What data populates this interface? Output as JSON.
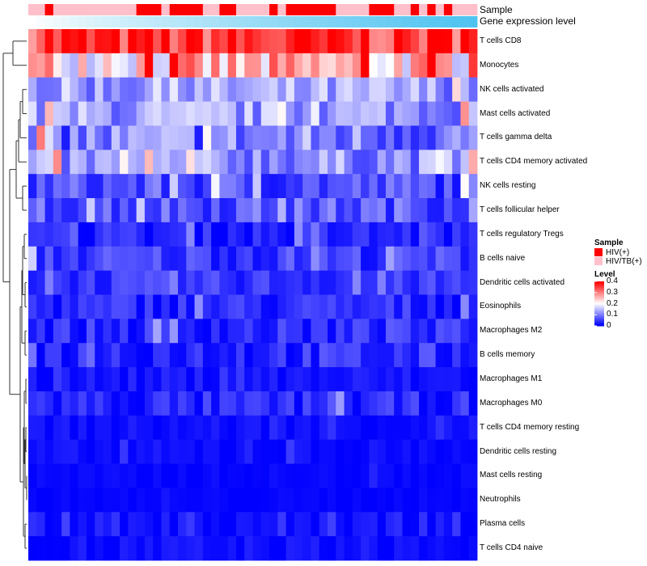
{
  "chart_data": {
    "type": "heatmap",
    "title": "",
    "annotations": [
      {
        "name": "Sample",
        "type": "categorical",
        "colors": {
          "HIV(+)": "#ff0000",
          "HIV/TB(+)": "#ffc0cb"
        },
        "values": [
          "HIV/TB(+)",
          "HIV/TB(+)",
          "HIV(+)",
          "HIV/TB(+)",
          "HIV/TB(+)",
          "HIV/TB(+)",
          "HIV/TB(+)",
          "HIV/TB(+)",
          "HIV/TB(+)",
          "HIV/TB(+)",
          "HIV/TB(+)",
          "HIV/TB(+)",
          "HIV/TB(+)",
          "HIV(+)",
          "HIV(+)",
          "HIV(+)",
          "HIV/TB(+)",
          "HIV(+)",
          "HIV(+)",
          "HIV(+)",
          "HIV(+)",
          "HIV/TB(+)",
          "HIV/TB(+)",
          "HIV(+)",
          "HIV(+)",
          "HIV/TB(+)",
          "HIV/TB(+)",
          "HIV/TB(+)",
          "HIV/TB(+)",
          "HIV(+)",
          "HIV/TB(+)",
          "HIV(+)",
          "HIV(+)",
          "HIV(+)",
          "HIV(+)",
          "HIV(+)",
          "HIV(+)",
          "HIV/TB(+)",
          "HIV/TB(+)",
          "HIV/TB(+)",
          "HIV/TB(+)",
          "HIV(+)",
          "HIV(+)",
          "HIV(+)",
          "HIV/TB(+)",
          "HIV/TB(+)",
          "HIV(+)",
          "HIV/TB(+)",
          "HIV(+)",
          "HIV/TB(+)",
          "HIV(+)",
          "HIV/TB(+)",
          "HIV/TB(+)",
          "HIV/TB(+)"
        ]
      },
      {
        "name": "Gene expression level",
        "type": "continuous",
        "low_color": "#ffffff",
        "high_color": "#4fc3f0"
      }
    ],
    "rows": [
      "T cells CD8",
      "Monocytes",
      "NK cells activated",
      "Mast cells activated",
      "T cells gamma delta",
      "T cells CD4 memory activated",
      "NK cells resting",
      "T cells follicular helper",
      "T cells regulatory  Tregs",
      "B cells naive",
      "Dendritic cells activated",
      "Eosinophils",
      "Macrophages M2",
      "B cells memory",
      "Macrophages M1",
      "Macrophages M0",
      "T cells CD4 memory resting",
      "Dendritic cells resting",
      "Mast cells resting",
      "Neutrophils",
      "Plasma cells",
      "T cells CD4 naive"
    ],
    "n_samples": 54,
    "row_levels": [
      0.34,
      0.22,
      0.11,
      0.11,
      0.08,
      0.1,
      0.05,
      0.06,
      0.02,
      0.04,
      0.035,
      0.025,
      0.025,
      0.025,
      0.01,
      0.02,
      0.008,
      0.005,
      0.003,
      0.002,
      0.01,
      0.005
    ],
    "row_spread": [
      0.08,
      0.1,
      0.06,
      0.06,
      0.08,
      0.06,
      0.05,
      0.05,
      0.03,
      0.04,
      0.03,
      0.035,
      0.035,
      0.04,
      0.02,
      0.035,
      0.015,
      0.015,
      0.008,
      0.006,
      0.03,
      0.02
    ],
    "color_scale": {
      "low": "#0000ff",
      "mid": "#ffffff",
      "high": "#ff0000",
      "min": 0,
      "mid_value": 0.2,
      "max": 0.4
    },
    "legend": {
      "sample_title": "Sample",
      "sample_items": [
        {
          "label": "HIV(+)",
          "color": "#ff0000"
        },
        {
          "label": "HIV/TB(+)",
          "color": "#ffc0cb"
        }
      ],
      "level_title": "Level",
      "level_ticks": [
        "0.4",
        "0.3",
        "0.2",
        "0.1",
        "0"
      ],
      "level_tick_values": [
        0.4,
        0.3,
        0.2,
        0.1,
        0
      ]
    },
    "dendrogram": "row clustering tree on left"
  }
}
